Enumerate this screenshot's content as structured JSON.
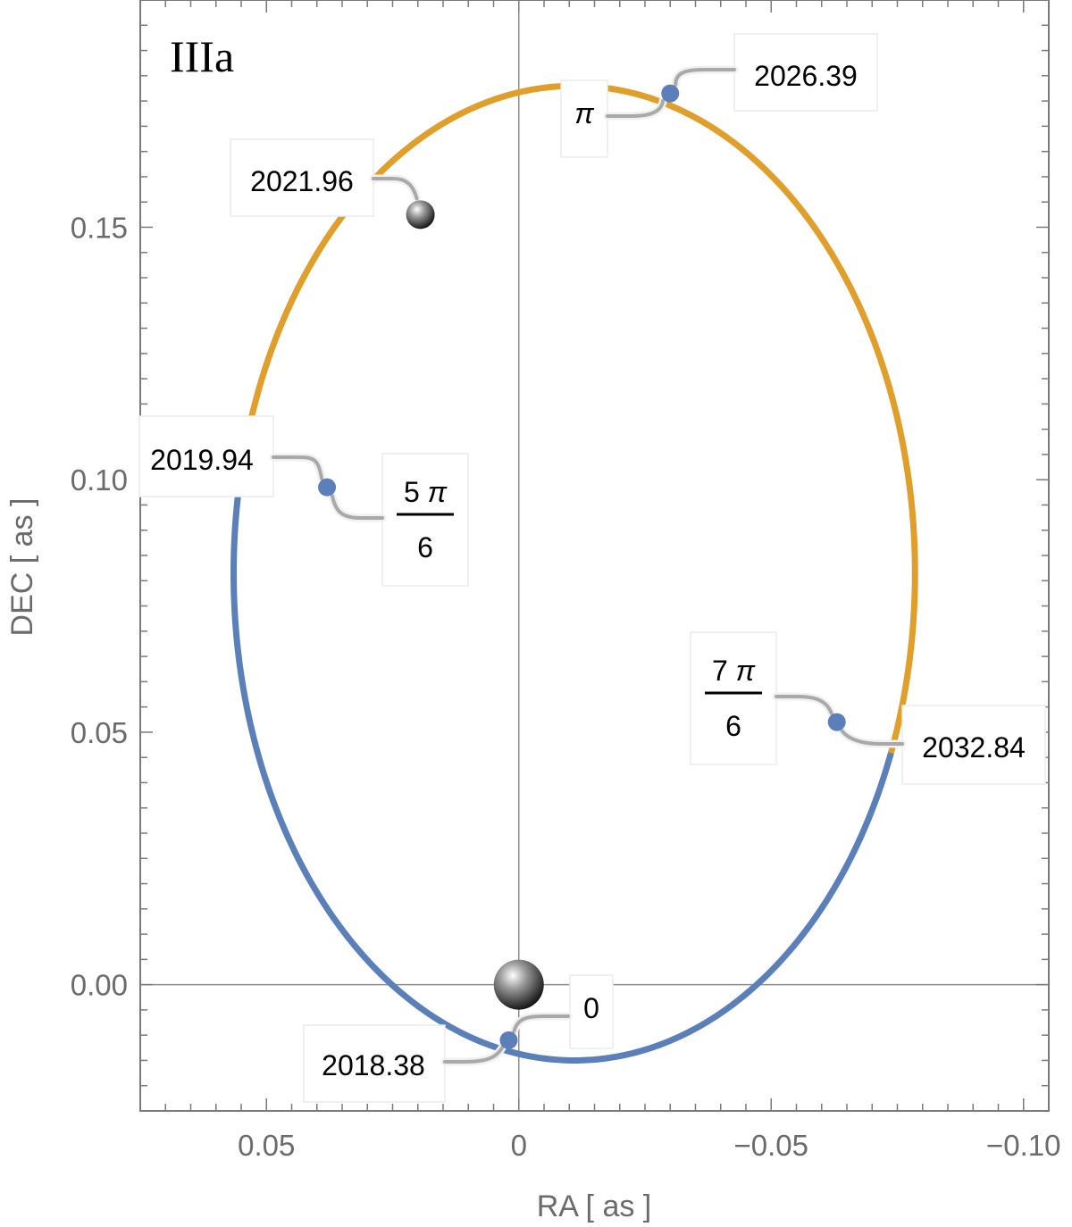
{
  "chart_data": {
    "type": "line",
    "panel_label": "IIIa",
    "xlabel": "RA [ as ]",
    "ylabel": "DEC [ as ]",
    "xlim": [
      0.075,
      -0.105
    ],
    "ylim": [
      -0.025,
      0.195
    ],
    "x_ticks": [
      {
        "value": 0.05,
        "label": "0.05"
      },
      {
        "value": 0,
        "label": "0"
      },
      {
        "value": -0.05,
        "label": "−0.05"
      },
      {
        "value": -0.1,
        "label": "−0.10"
      }
    ],
    "y_ticks": [
      {
        "value": 0.0,
        "label": "0.00"
      },
      {
        "value": 0.05,
        "label": "0.05"
      },
      {
        "value": 0.1,
        "label": "0.10"
      },
      {
        "value": 0.15,
        "label": "0.15"
      }
    ],
    "grid": false,
    "origin_lines": true,
    "orbit_ellipse": {
      "center": [
        -0.011,
        0.0815
      ],
      "semi_axis_ra": 0.0675,
      "semi_axis_dec": 0.0965
    },
    "series": [
      {
        "segment": "descending (phase 5π/6 → 0 → 7π/6, via periapsis)",
        "color": "#E09E2B"
      },
      {
        "segment": "ascending (phase 5π/6 → π → 7π/6, via apoapsis)",
        "color": "#5B7FB9"
      }
    ],
    "points": [
      {
        "phase": "0",
        "year": "2018.38",
        "ra": 0.002,
        "dec": -0.011
      },
      {
        "phase": "5π/6",
        "year": "2019.94",
        "ra": 0.038,
        "dec": 0.0985
      },
      {
        "phase": "π",
        "year": "2026.39",
        "ra": -0.03,
        "dec": 0.1765
      },
      {
        "phase": "7π/6",
        "year": "2032.84",
        "ra": -0.063,
        "dec": 0.052
      }
    ],
    "current_position": {
      "year": "2021.96",
      "ra": 0.0195,
      "dec": 0.1525
    },
    "central_body": {
      "ra": 0.0,
      "dec": 0.0
    }
  },
  "colors": {
    "ascending": "#5B7FB9",
    "descending": "#E09E2B",
    "marker": "#5B7FB9",
    "frame": "#7a7a7a",
    "leader": "#a9a9a9"
  }
}
